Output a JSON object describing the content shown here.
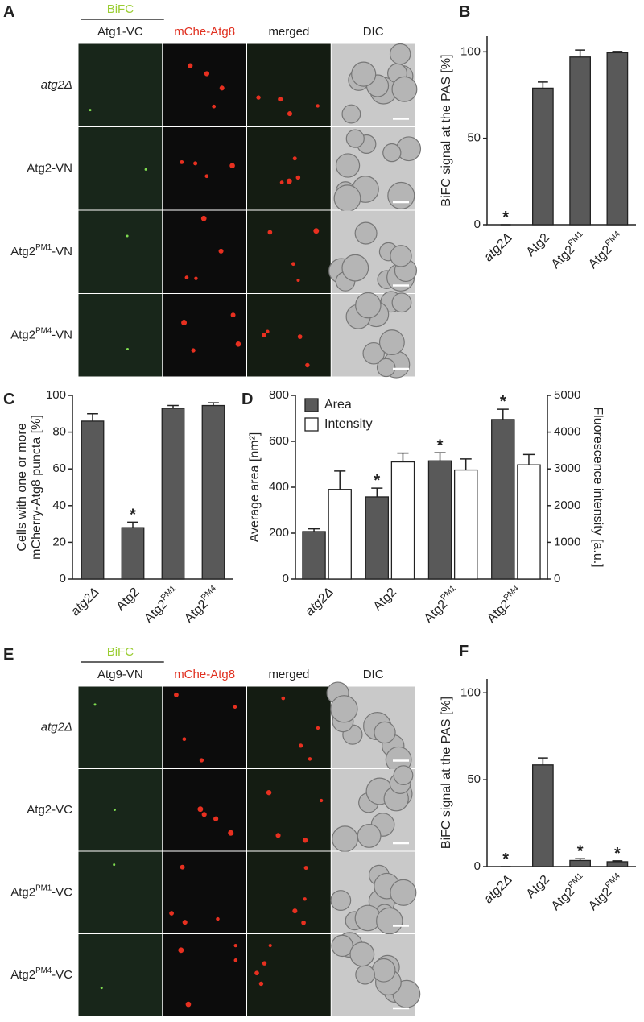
{
  "image_panels": [
    {
      "panel_label": "A",
      "group_label": "BiFC",
      "columns": [
        "Atg1-VC",
        "mChe-Atg8",
        "merged",
        "DIC"
      ],
      "rows": [
        "atg2Δ",
        "Atg2-VN",
        "Atg2PM1-VN",
        "Atg2PM4-VN"
      ]
    },
    {
      "panel_label": "E",
      "group_label": "BiFC",
      "columns": [
        "Atg9-VN",
        "mChe-Atg8",
        "merged",
        "DIC"
      ],
      "rows": [
        "atg2Δ",
        "Atg2-VC",
        "Atg2PM1-VC",
        "Atg2PM4-VC"
      ]
    }
  ],
  "chart_data": [
    {
      "type": "bar",
      "panel_label": "B",
      "y_label": "BiFC signal at the PAS [%]",
      "categories": [
        "atg2Δ",
        "Atg2",
        "Atg2PM1",
        "Atg2PM4"
      ],
      "values": [
        0,
        79,
        97,
        99.5
      ],
      "errors": [
        0,
        3.5,
        4,
        0.7
      ],
      "value_markers": [
        "*",
        null,
        null,
        null
      ],
      "color": "#595959",
      "ylim": [
        0,
        109
      ],
      "yticks": [
        0,
        50,
        100
      ]
    },
    {
      "type": "bar",
      "panel_label": "C",
      "y_label": [
        "Cells with one or more",
        "mCherry-Atg8 puncta [%]"
      ],
      "categories": [
        "atg2Δ",
        "Atg2",
        "Atg2PM1",
        "Atg2PM4"
      ],
      "values": [
        86,
        28,
        93,
        94.5
      ],
      "errors": [
        4,
        3,
        1.5,
        1.5
      ],
      "value_markers": [
        null,
        "*",
        null,
        null
      ],
      "color": "#595959",
      "ylim": [
        0,
        100
      ],
      "yticks": [
        0,
        20,
        40,
        60,
        80,
        100
      ]
    },
    {
      "type": "bar",
      "panel_label": "D",
      "y_label": "Average area [nm²]",
      "y2_label": "Fluorescence intensity [a.u.]",
      "categories": [
        "atg2Δ",
        "Atg2",
        "Atg2PM1",
        "Atg2PM4"
      ],
      "series": [
        {
          "name": "Area",
          "color": "#595959",
          "values": [
            207,
            358,
            515,
            695
          ],
          "errors": [
            12,
            38,
            35,
            45
          ],
          "value_markers": [
            null,
            "*",
            "*",
            "*"
          ]
        },
        {
          "name": "Intensity",
          "color": "#ffffff",
          "axis": "y2",
          "values": [
            2440,
            3190,
            2970,
            3110
          ],
          "errors": [
            500,
            240,
            300,
            280
          ]
        }
      ],
      "ylim": [
        0,
        800
      ],
      "yticks": [
        0,
        200,
        400,
        600,
        800
      ],
      "y2lim": [
        0,
        5000
      ],
      "y2ticks": [
        0,
        1000,
        2000,
        3000,
        4000,
        5000
      ],
      "legend": "upper-left"
    },
    {
      "type": "bar",
      "panel_label": "F",
      "y_label": "BiFC signal at the PAS [%]",
      "categories": [
        "atg2Δ",
        "Atg2",
        "Atg2PM1",
        "Atg2PM4"
      ],
      "values": [
        0,
        58.5,
        3.5,
        2.8
      ],
      "errors": [
        0,
        4,
        1,
        0.5
      ],
      "value_markers": [
        "*",
        null,
        "*",
        "*"
      ],
      "color": "#595959",
      "ylim": [
        0,
        108
      ],
      "yticks": [
        0,
        50,
        100
      ]
    }
  ]
}
